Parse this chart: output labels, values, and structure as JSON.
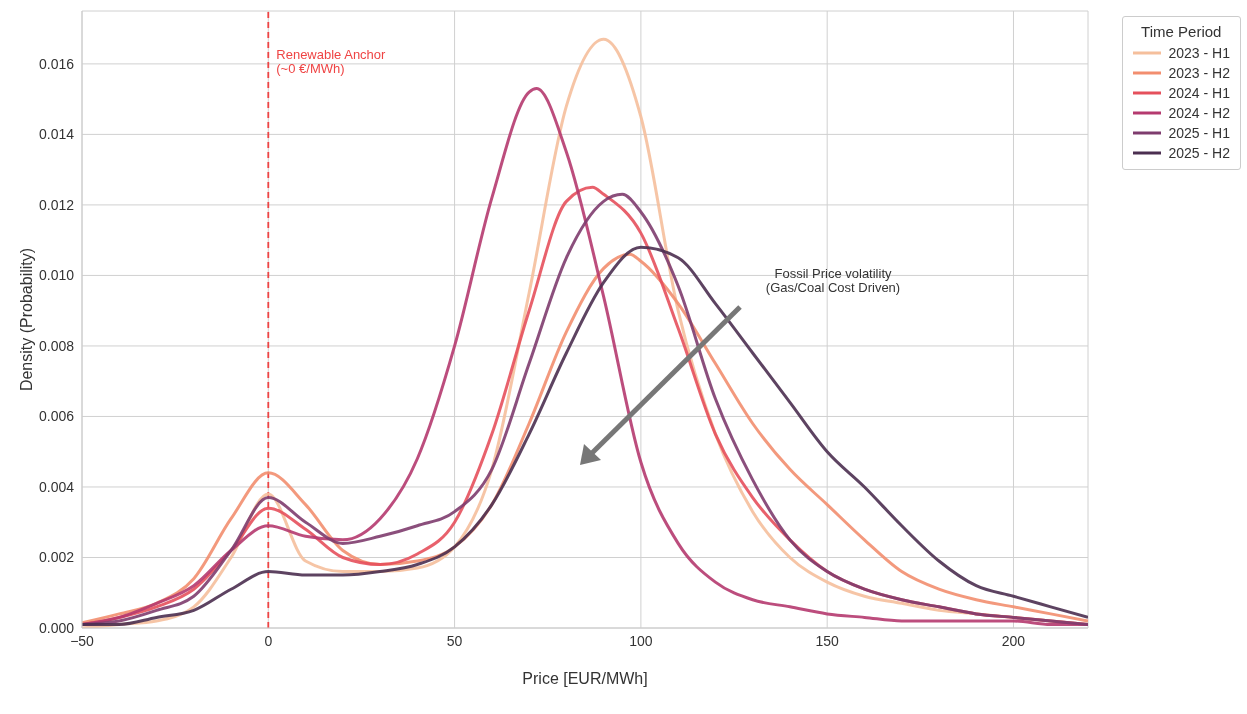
{
  "chart_data": {
    "type": "line",
    "xlabel": "Price [EUR/MWh]",
    "ylabel": "Density (Probability)",
    "legend_title": "Time Period",
    "legend": "right",
    "grid": true,
    "marker": "none",
    "line_style": "solid",
    "xlim": [
      -50,
      220
    ],
    "xticks": [
      {
        "value": -50,
        "label": "−50"
      },
      0,
      50,
      100,
      150,
      200
    ],
    "ylim": [
      0,
      0.0175
    ],
    "yticks": [
      {
        "value": 0,
        "label": "0.000"
      },
      0.002,
      0.004,
      0.006,
      0.008,
      {
        "value": 0.01,
        "label": "0.010"
      },
      0.012,
      0.014,
      0.016
    ],
    "series": [
      {
        "name": "2023 - H1",
        "color": "#f5bf9c",
        "x": [
          -50,
          -40,
          -30,
          -20,
          -10,
          0,
          10,
          20,
          30,
          40,
          50,
          60,
          70,
          80,
          90,
          100,
          110,
          120,
          130,
          140,
          150,
          160,
          170,
          180,
          190,
          200,
          210,
          220
        ],
        "values": [
          0,
          0.0001,
          0.0002,
          0.0006,
          0.002,
          0.0038,
          0.0019,
          0.0016,
          0.0016,
          0.0017,
          0.0023,
          0.0045,
          0.0095,
          0.0148,
          0.0167,
          0.0145,
          0.009,
          0.0055,
          0.0033,
          0.002,
          0.0013,
          0.0009,
          0.0007,
          0.0005,
          0.0004,
          0.0003,
          0.0002,
          0.0001
        ]
      },
      {
        "name": "2023 - H2",
        "color": "#f28e6f",
        "x": [
          -50,
          -40,
          -30,
          -20,
          -10,
          0,
          10,
          20,
          30,
          40,
          50,
          60,
          70,
          80,
          90,
          97,
          100,
          110,
          120,
          130,
          140,
          150,
          160,
          170,
          180,
          190,
          200,
          210,
          220
        ],
        "values": [
          0.00015,
          0.0004,
          0.0007,
          0.0014,
          0.0031,
          0.0044,
          0.0035,
          0.0022,
          0.0018,
          0.0019,
          0.0023,
          0.0035,
          0.0058,
          0.0084,
          0.0102,
          0.0106,
          0.0104,
          0.0092,
          0.0075,
          0.0058,
          0.0045,
          0.0035,
          0.0025,
          0.0016,
          0.0011,
          0.0008,
          0.0006,
          0.0004,
          0.0002
        ]
      },
      {
        "name": "2024 - H1",
        "color": "#e5505c",
        "x": [
          -50,
          -40,
          -30,
          -20,
          -10,
          0,
          10,
          20,
          30,
          40,
          50,
          60,
          70,
          80,
          87,
          90,
          100,
          110,
          120,
          130,
          140,
          150,
          160,
          170,
          180,
          190,
          200,
          210,
          220
        ],
        "values": [
          0.0001,
          0.0003,
          0.0006,
          0.0011,
          0.0022,
          0.0034,
          0.0028,
          0.002,
          0.0018,
          0.0021,
          0.003,
          0.0055,
          0.009,
          0.0121,
          0.0125,
          0.0123,
          0.0112,
          0.0085,
          0.0055,
          0.0037,
          0.0025,
          0.0016,
          0.0011,
          0.0008,
          0.0006,
          0.0004,
          0.0003,
          0.0002,
          0.0001
        ]
      },
      {
        "name": "2024 - H2",
        "color": "#b53a6f",
        "x": [
          -50,
          -40,
          -30,
          -20,
          -10,
          0,
          10,
          20,
          30,
          40,
          50,
          60,
          70,
          72,
          80,
          90,
          100,
          110,
          120,
          130,
          140,
          150,
          160,
          170,
          180,
          190,
          200,
          210,
          220
        ],
        "values": [
          0.0001,
          0.0003,
          0.0007,
          0.0012,
          0.0022,
          0.0029,
          0.0026,
          0.0025,
          0.0031,
          0.0048,
          0.008,
          0.0122,
          0.0152,
          0.0153,
          0.0135,
          0.0094,
          0.0047,
          0.0024,
          0.0013,
          0.0008,
          0.0006,
          0.0004,
          0.0003,
          0.0002,
          0.0002,
          0.0002,
          0.0002,
          0.0001,
          0.0001
        ]
      },
      {
        "name": "2025 - H1",
        "color": "#7e3c6e",
        "x": [
          -50,
          -40,
          -30,
          -20,
          -10,
          0,
          10,
          20,
          30,
          40,
          50,
          60,
          70,
          80,
          90,
          95,
          100,
          110,
          120,
          130,
          140,
          150,
          160,
          170,
          180,
          190,
          200,
          210,
          220
        ],
        "values": [
          0.0001,
          0.0002,
          0.0005,
          0.0009,
          0.0022,
          0.0037,
          0.003,
          0.0024,
          0.0026,
          0.0029,
          0.0033,
          0.0045,
          0.0075,
          0.0105,
          0.0121,
          0.0123,
          0.0118,
          0.0097,
          0.0065,
          0.0042,
          0.0025,
          0.0016,
          0.0011,
          0.0008,
          0.0006,
          0.0004,
          0.0003,
          0.0002,
          0.0001
        ]
      },
      {
        "name": "2025 - H2",
        "color": "#4b2f50",
        "x": [
          -50,
          -40,
          -30,
          -20,
          -10,
          0,
          10,
          20,
          30,
          40,
          50,
          60,
          70,
          80,
          90,
          100,
          110,
          120,
          130,
          140,
          150,
          160,
          170,
          180,
          190,
          200,
          210,
          220
        ],
        "values": [
          0.0001,
          0.0001,
          0.0003,
          0.0005,
          0.0011,
          0.0016,
          0.0015,
          0.0015,
          0.0016,
          0.0018,
          0.0023,
          0.0035,
          0.0055,
          0.0078,
          0.0098,
          0.0108,
          0.0105,
          0.0092,
          0.0078,
          0.0064,
          0.005,
          0.004,
          0.0029,
          0.0019,
          0.0012,
          0.0009,
          0.0006,
          0.0003
        ]
      }
    ],
    "ref_lines": [
      {
        "axis": "x",
        "value": 0,
        "label": "Renewable Anchor\n(~0 €/MWh)",
        "color": "#ef4444",
        "line_style": "dashed"
      }
    ],
    "annotations": [
      "Fossil Price volatility\n(Gas/Coal Cost Driven)"
    ]
  }
}
